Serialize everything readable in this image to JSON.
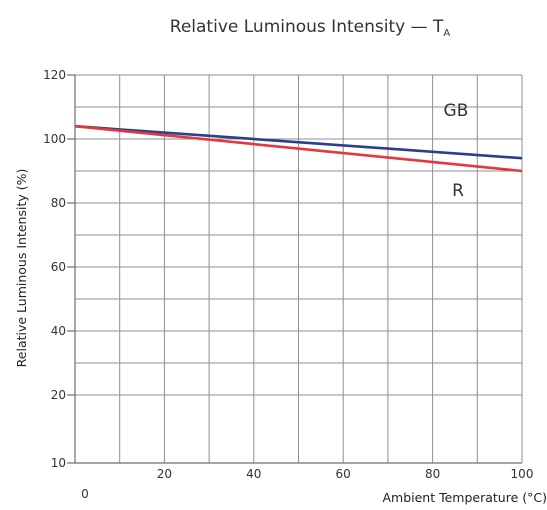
{
  "chart_data": {
    "type": "line",
    "title": "Relative Luminous Intensity — T",
    "title_subscript": "A",
    "xlabel": "Ambient Temperature (°C)",
    "ylabel": "Relative Luminous Intensity (%)",
    "xlim": [
      0,
      100
    ],
    "ylim": [
      10,
      120
    ],
    "x_ticks": [
      0,
      20,
      40,
      60,
      80,
      100
    ],
    "y_ticks": [
      10,
      20,
      40,
      60,
      80,
      100,
      120
    ],
    "grid": true,
    "series": [
      {
        "name": "GB",
        "color": "#2b3f8c",
        "x": [
          0,
          100
        ],
        "y": [
          104,
          94
        ]
      },
      {
        "name": "R",
        "color": "#e03a3e",
        "x": [
          0,
          100
        ],
        "y": [
          104,
          90
        ]
      }
    ]
  }
}
